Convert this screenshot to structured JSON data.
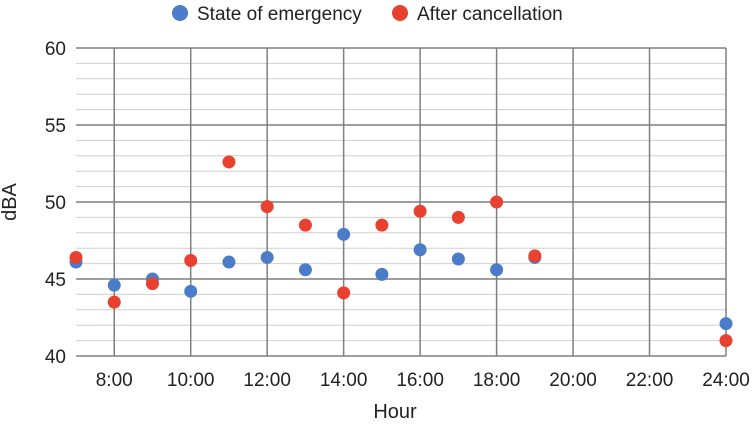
{
  "chart_data": {
    "type": "scatter",
    "title": "",
    "xlabel": "Hour",
    "ylabel": "dBA",
    "xlim": [
      7,
      24
    ],
    "ylim": [
      40,
      60
    ],
    "x_ticks": [
      8,
      10,
      12,
      14,
      16,
      18,
      20,
      22,
      24
    ],
    "x_tick_labels": [
      "8:00",
      "10:00",
      "12:00",
      "14:00",
      "16:00",
      "18:00",
      "20:00",
      "22:00",
      "24:00"
    ],
    "y_ticks": [
      40,
      45,
      50,
      55,
      60
    ],
    "y_tick_labels": [
      "40",
      "45",
      "50",
      "55",
      "60"
    ],
    "grid": true,
    "legend_position": "top-center",
    "series": [
      {
        "name": "State of emergency",
        "color": "#4a7cc9",
        "x": [
          7,
          8,
          9,
          10,
          11,
          12,
          13,
          14,
          15,
          16,
          17,
          18,
          19,
          24
        ],
        "y": [
          46.1,
          44.6,
          45.0,
          44.2,
          46.1,
          46.4,
          45.6,
          47.9,
          45.3,
          46.9,
          46.3,
          45.6,
          46.4,
          42.1
        ]
      },
      {
        "name": "After cancellation",
        "color": "#e8412f",
        "x": [
          7,
          8,
          9,
          10,
          11,
          12,
          13,
          14,
          15,
          16,
          17,
          18,
          19,
          24
        ],
        "y": [
          46.4,
          43.5,
          44.7,
          46.2,
          52.6,
          49.7,
          48.5,
          44.1,
          48.5,
          49.4,
          49.0,
          50.0,
          46.5,
          41.0
        ]
      }
    ]
  }
}
